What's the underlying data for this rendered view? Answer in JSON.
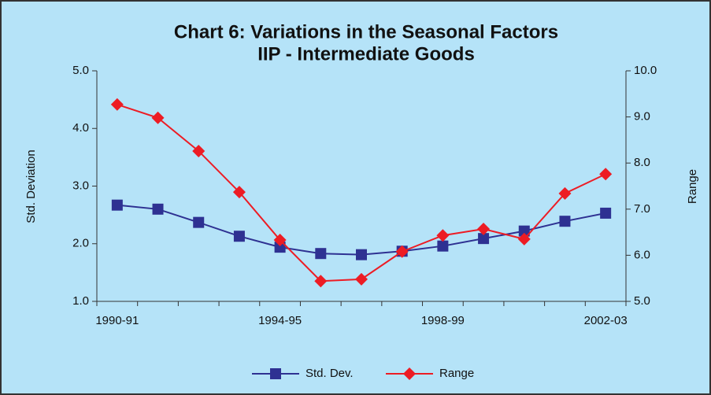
{
  "chart_data": {
    "type": "line",
    "title": "Chart 6: Variations in the Seasonal  Factors",
    "subtitle": "IIP - Intermediate Goods",
    "y_label": "Std. Deviation",
    "y2_label": "Range",
    "categories": [
      "1990-91",
      null,
      null,
      null,
      "1994-95",
      null,
      null,
      null,
      "1998-99",
      null,
      null,
      null,
      "2002-03"
    ],
    "series": [
      {
        "name": "Std. Dev.",
        "color": "#2e3192",
        "marker": "square",
        "values": [
          2.67,
          2.6,
          2.37,
          2.13,
          1.94,
          1.83,
          1.81,
          1.87,
          1.96,
          2.09,
          2.22,
          2.39,
          2.53
        ]
      },
      {
        "name": "Range",
        "color": "#ed1c24",
        "marker": "diamond",
        "axis": "y2",
        "values": [
          9.27,
          8.98,
          8.26,
          7.37,
          6.33,
          5.44,
          5.48,
          6.08,
          6.43,
          6.57,
          6.35,
          7.34,
          7.76
        ]
      }
    ],
    "ylim": [
      1,
      5
    ],
    "yticks": [
      {
        "value": 1,
        "label": "1.0"
      },
      {
        "value": 2,
        "label": "2.0"
      },
      {
        "value": 3,
        "label": "3.0"
      },
      {
        "value": 4,
        "label": "4.0"
      },
      {
        "value": 5,
        "label": "5.0"
      }
    ],
    "y2lim": [
      5,
      10
    ],
    "y2ticks": [
      {
        "value": 5,
        "label": "5.0"
      },
      {
        "value": 6,
        "label": "6.0"
      },
      {
        "value": 7,
        "label": "7.0"
      },
      {
        "value": 8,
        "label": "8.0"
      },
      {
        "value": 9,
        "label": "9.0"
      },
      {
        "value": 10,
        "label": "10.0"
      }
    ],
    "legend": "bottom"
  }
}
